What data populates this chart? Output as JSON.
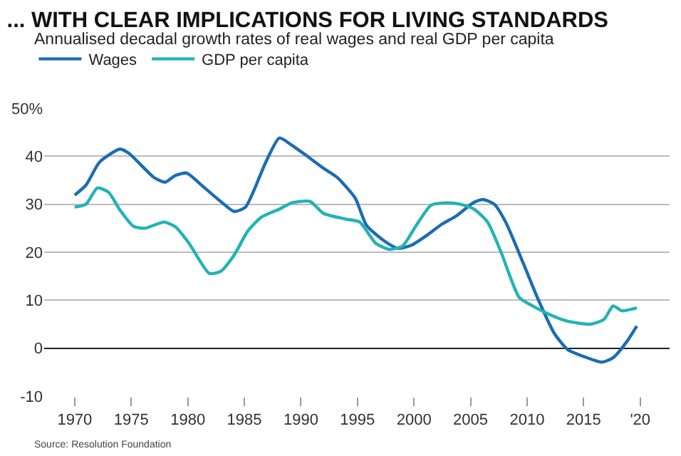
{
  "chart_data": {
    "type": "line",
    "title": "... WITH CLEAR IMPLICATIONS FOR LIVING STANDARDS",
    "subtitle": "Annualised decadal growth rates of real wages and real GDP per capita",
    "series": [
      {
        "name": "Wages",
        "color": "#1b6db3",
        "x": [
          1970,
          1971,
          1972.2,
          1974,
          1974.8,
          1977,
          1978,
          1978.9,
          1979.9,
          1981.3,
          1982.9,
          1984.1,
          1985.1,
          1986.9,
          1988.1,
          1989.2,
          1990.4,
          1992,
          1993.2,
          1994.8,
          1995.8,
          1997.4,
          1998.6,
          1999.8,
          2001.3,
          2002.5,
          2003.7,
          2005.3,
          2006.1,
          2007.1,
          2008.1,
          2009.7,
          2010.9,
          2012.4,
          2013.6,
          2015.2,
          2016.6,
          2017.6,
          2018.8,
          2019.7
        ],
        "values": [
          31.9,
          34,
          38.8,
          41.5,
          40.6,
          35.6,
          34.6,
          36,
          36.5,
          33.8,
          30.6,
          28.5,
          29.4,
          38.8,
          43.8,
          42.3,
          40.3,
          37.5,
          35.6,
          31.3,
          25.6,
          22.3,
          20.8,
          21.5,
          23.8,
          25.9,
          27.5,
          30.4,
          31,
          30,
          26.3,
          17.5,
          10.6,
          3.1,
          -0.3,
          -1.9,
          -2.9,
          -2,
          1.3,
          4.6
        ]
      },
      {
        "name": "GDP per capita",
        "color": "#22b3b5",
        "x": [
          1970,
          1971,
          1972,
          1973,
          1974,
          1975.2,
          1976.2,
          1977.9,
          1978.9,
          1980.1,
          1981.9,
          1982.9,
          1984.1,
          1985.3,
          1986.5,
          1988.1,
          1989.2,
          1990.8,
          1992,
          1994,
          1995.2,
          1996.6,
          1997.8,
          1999,
          2000.2,
          2001.5,
          2002.9,
          2004.1,
          2005.3,
          2006.5,
          2007.7,
          2009.3,
          2010.5,
          2012.1,
          2013.6,
          2015.6,
          2016.8,
          2017.6,
          2018.4,
          2019.7
        ],
        "values": [
          29.4,
          30,
          33.4,
          32.5,
          28.8,
          25.4,
          25,
          26.3,
          25.3,
          21.9,
          15.6,
          16,
          19.4,
          24.4,
          27.3,
          29,
          30.3,
          30.6,
          28.1,
          26.9,
          26.3,
          21.9,
          20.6,
          21.3,
          25.6,
          29.8,
          30.3,
          30,
          29,
          26.3,
          20,
          10.6,
          8.8,
          6.9,
          5.6,
          5,
          6,
          8.8,
          7.8,
          8.4
        ]
      }
    ],
    "xlim": [
      1967.3,
      2022.6
    ],
    "xticks": [
      1970,
      1975,
      1980,
      1985,
      1990,
      1995,
      2000,
      2005,
      2010,
      2015,
      {
        "value": 2020,
        "label": "'20"
      }
    ],
    "ylim": [
      -10,
      50
    ],
    "yticks": [
      -10,
      0,
      10,
      20,
      30,
      40,
      {
        "value": 50,
        "label": "50%"
      }
    ],
    "grid": "y",
    "legend": "top left",
    "marker": "none",
    "line_style": "solid",
    "annotations": [
      "Source: Resolution Foundation"
    ]
  }
}
